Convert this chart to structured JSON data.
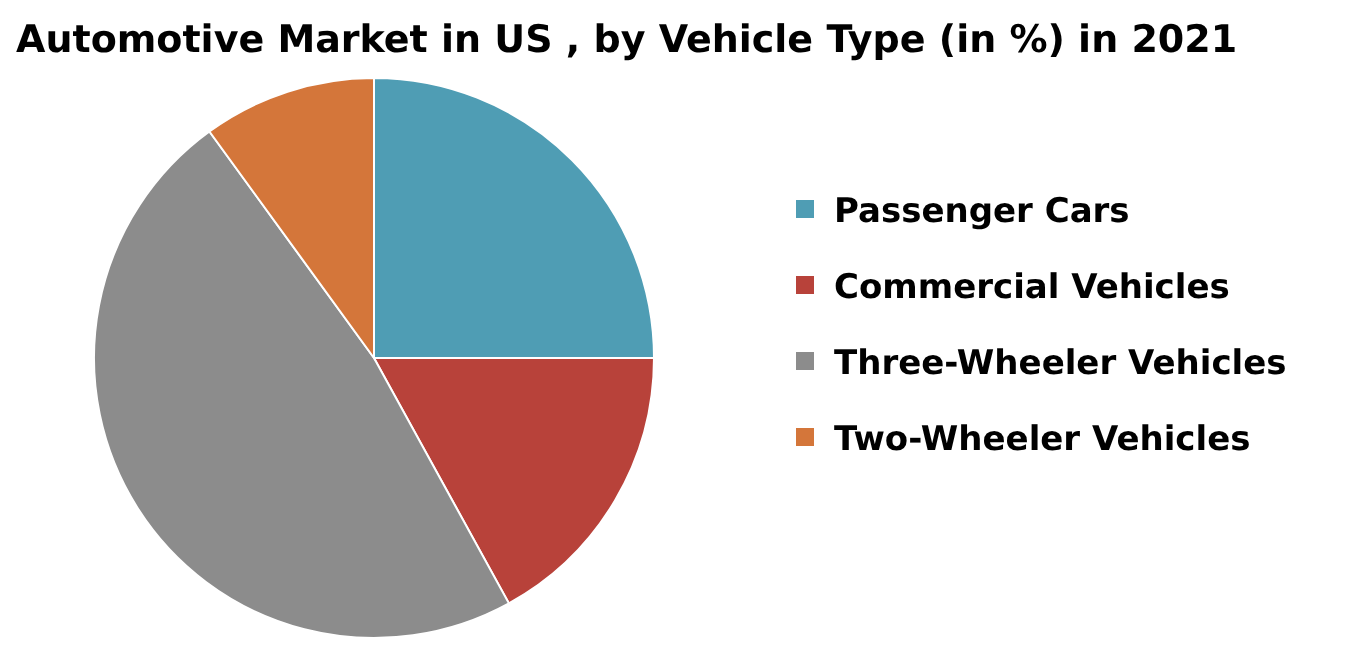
{
  "chart_data": {
    "type": "pie",
    "title": "Automotive Market in US , by Vehicle Type (in %) in 2021",
    "categories": [
      "Passenger Cars",
      "Commercial Vehicles",
      "Three-Wheeler Vehicles",
      "Two-Wheeler Vehicles"
    ],
    "values": [
      25,
      17,
      48,
      10
    ],
    "colors": [
      "#4f9db4",
      "#b8423a",
      "#8c8c8c",
      "#d4763a"
    ],
    "legend": "right"
  }
}
